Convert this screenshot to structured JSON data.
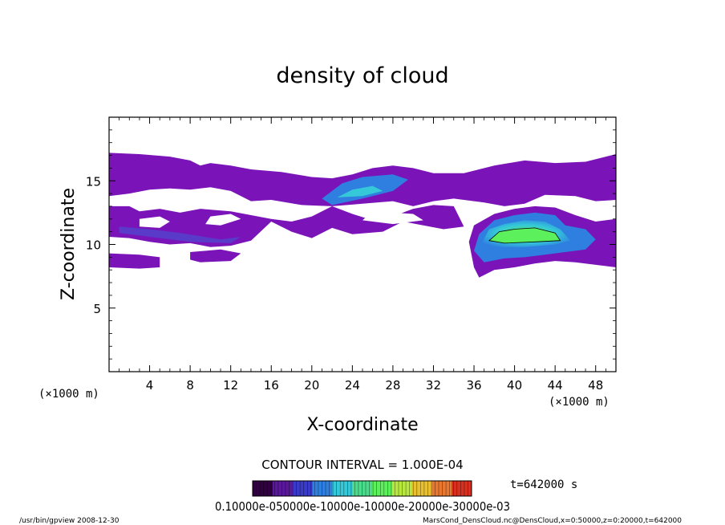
{
  "chart_data": {
    "type": "heatmap",
    "title": "density of cloud",
    "xlabel": "X-coordinate",
    "ylabel": "Z-coordinate",
    "x_unit": "(×1000 m)",
    "y_unit": "(×1000 m)",
    "xlim": [
      0,
      50
    ],
    "ylim": [
      0,
      20
    ],
    "x_ticks": [
      4,
      8,
      12,
      16,
      20,
      24,
      28,
      32,
      36,
      40,
      44,
      48
    ],
    "y_ticks": [
      5,
      10,
      15
    ],
    "grid": false,
    "contour_interval": "CONTOUR INTERVAL = 1.000E-04",
    "colorbar": {
      "label_text": "0.10000e-050000e-10000e-10000e-20000e-30000e-03",
      "levels": [
        1e-05,
        5e-05,
        0.0001,
        0.00015,
        0.0002,
        0.00025,
        0.0003
      ],
      "colors": [
        "#300040",
        "#5a189a",
        "#3a3ac8",
        "#2f7fe0",
        "#34c8d8",
        "#4adc8c",
        "#5cf05c",
        "#b8e840",
        "#e8c030",
        "#e87830",
        "#d83020"
      ]
    },
    "time_label": "t=642000 s",
    "regions": [
      {
        "name": "upper-band",
        "x": [
          0,
          50
        ],
        "z": [
          14,
          17.2
        ],
        "level": 1e-05
      },
      {
        "name": "middle-band-left",
        "x": [
          0,
          15
        ],
        "z": [
          9.5,
          13
        ],
        "level": 1e-05
      },
      {
        "name": "lower-band-left",
        "x": [
          0,
          5
        ],
        "z": [
          8.2,
          9.2
        ],
        "level": 1e-05
      },
      {
        "name": "mid-patch",
        "x": [
          20,
          30
        ],
        "z": [
          12.5,
          15.8
        ],
        "level": 5e-05
      },
      {
        "name": "right-cloud-core",
        "x": [
          36,
          45
        ],
        "z": [
          9.5,
          12
        ],
        "level": 0.00015
      },
      {
        "name": "right-cloud-base",
        "x": [
          36,
          50
        ],
        "z": [
          7.5,
          10.5
        ],
        "level": 1e-05
      }
    ],
    "colors": {
      "low": "#7a14b8",
      "mid": "#2f7fe0",
      "high": "#5cf05c",
      "frame": "#000000"
    }
  },
  "footer": {
    "left": "/usr/bin/gpview   2008-12-30",
    "right": "MarsCond_DensCloud.nc@DensCloud,x=0:50000,z=0:20000,t=642000"
  }
}
